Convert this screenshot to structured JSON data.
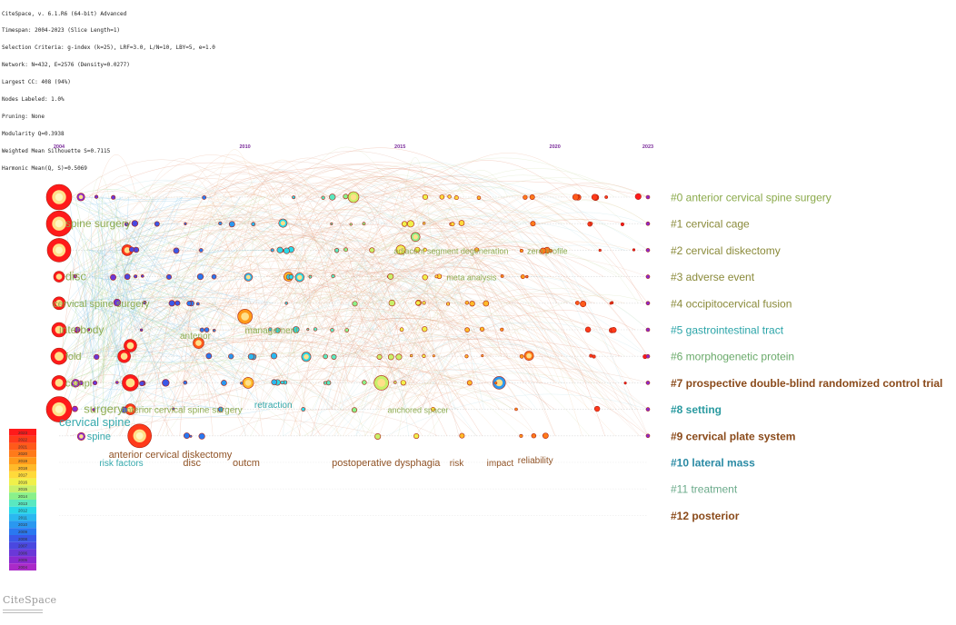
{
  "header_lines": [
    "CiteSpace, v. 6.1.R6 (64-bit) Advanced",
    "Timespan: 2004-2023 (Slice Length=1)",
    "Selection Criteria: g-index (k=25), LRF=3.0, L/N=10, LBY=5, e=1.0",
    "Network: N=432, E=2576 (Density=0.0277)",
    "Largest CC: 408 (94%)",
    "Nodes Labeled: 1.0%",
    "Pruning: None",
    "Modularity Q=0.3938",
    "Weighted Mean Silhouette S=0.7115",
    "Harmonic Mean(Q, S)=0.5069"
  ],
  "brand": "CiteSpace",
  "colors": {
    "cluster_green": "#8aa94a",
    "cluster_olive": "#8a8a3a",
    "cluster_teal": "#2aa4a8",
    "cluster_brown": "#8a4a1a",
    "cluster_sage": "#6aaa8a",
    "edge_red": "#e06a4a",
    "edge_orange": "#e8a060",
    "node_fill": "#ff4a1a",
    "node_core": "#fff07a"
  },
  "chart_data": {
    "type": "timeline",
    "title": "",
    "x_axis": {
      "ticks": [
        "2004",
        "2010",
        "2015",
        "2020",
        "2023"
      ],
      "range": [
        2004,
        2023
      ]
    },
    "clusters": [
      {
        "id": "#0",
        "label": "#0 anterior cervical spine surgery",
        "color": "#8aa94a"
      },
      {
        "id": "#1",
        "label": "#1 cervical cage",
        "color": "#8a8a3a"
      },
      {
        "id": "#2",
        "label": "#2 cervical diskectomy",
        "color": "#8a8a3a"
      },
      {
        "id": "#3",
        "label": "#3 adverse event",
        "color": "#8a8a3a"
      },
      {
        "id": "#4",
        "label": "#4 occipitocervical fusion",
        "color": "#8a8a3a"
      },
      {
        "id": "#5",
        "label": "#5 gastrointestinal tract",
        "color": "#2aa4a8"
      },
      {
        "id": "#6",
        "label": "#6 morphogenetic protein",
        "color": "#6aaa6a"
      },
      {
        "id": "#7",
        "label": "#7 prospective double-blind randomized control trial",
        "color": "#8a4a1a"
      },
      {
        "id": "#8",
        "label": "#8 setting",
        "color": "#2a9aa0"
      },
      {
        "id": "#9",
        "label": "#9 cervical plate system",
        "color": "#8a4a1a"
      },
      {
        "id": "#10",
        "label": "#10 lateral mass",
        "color": "#2a8aa4"
      },
      {
        "id": "#11",
        "label": "#11 treatment",
        "color": "#6aaa8a"
      },
      {
        "id": "#12",
        "label": "#12 posterior",
        "color": "#8a4a1a"
      }
    ],
    "keyword_labels": [
      {
        "text": "spine surgery",
        "lane": 1,
        "year": 2004.2,
        "color": "#8aa94a",
        "size": 12
      },
      {
        "text": "disc",
        "lane": 3,
        "year": 2004.2,
        "color": "#8aa94a",
        "size": 13
      },
      {
        "text": "cervical spine surgery",
        "lane": 4,
        "year": 2003.8,
        "color": "#8aa94a",
        "size": 11
      },
      {
        "text": "interbody",
        "lane": 5,
        "year": 2004.0,
        "color": "#8aa94a",
        "size": 12
      },
      {
        "text": "fold",
        "lane": 6,
        "year": 2004.2,
        "color": "#8aa94a",
        "size": 11
      },
      {
        "text": "compl",
        "lane": 7,
        "year": 2004.2,
        "color": "#8aa94a",
        "size": 11
      },
      {
        "text": "surgery",
        "lane": 8,
        "year": 2004.8,
        "color": "#8aa94a",
        "size": 13
      },
      {
        "text": "cervical spine",
        "lane": 8.5,
        "year": 2004.0,
        "color": "#2aa4a8",
        "size": 13
      },
      {
        "text": "spine",
        "lane": 9,
        "year": 2004.9,
        "color": "#2aa4a8",
        "size": 11
      },
      {
        "text": "anterior cervical spine surgery",
        "lane": 8,
        "year": 2006.0,
        "color": "#8aa94a",
        "size": 10
      },
      {
        "text": "anterior",
        "lane": 5.2,
        "year": 2007.9,
        "color": "#8aa94a",
        "size": 10
      },
      {
        "text": "management",
        "lane": 5,
        "year": 2010.0,
        "color": "#8aa94a",
        "size": 10
      },
      {
        "text": "retraction",
        "lane": 7.8,
        "year": 2010.3,
        "color": "#2aa4a8",
        "size": 10
      },
      {
        "text": "adjacent segment degeneration",
        "lane": 2,
        "year": 2014.8,
        "color": "#8aa94a",
        "size": 9
      },
      {
        "text": "zero profile",
        "lane": 2,
        "year": 2019.1,
        "color": "#8aa94a",
        "size": 9
      },
      {
        "text": "anchored spacer",
        "lane": 8,
        "year": 2014.6,
        "color": "#8aa94a",
        "size": 9
      },
      {
        "text": "meta analysis",
        "lane": 3,
        "year": 2016.5,
        "color": "#8aa94a",
        "size": 9
      },
      {
        "text": "anterior cervical diskectomy",
        "lane": 9.7,
        "year": 2005.6,
        "color": "#8a4a1a",
        "size": 11
      },
      {
        "text": "risk factors",
        "lane": 10,
        "year": 2005.3,
        "color": "#2aa4a8",
        "size": 10
      },
      {
        "text": "disc",
        "lane": 10,
        "year": 2008.0,
        "color": "#8a4a1a",
        "size": 11
      },
      {
        "text": "outcm",
        "lane": 10,
        "year": 2009.6,
        "color": "#8a4a1a",
        "size": 11
      },
      {
        "text": "postoperative dysphagia",
        "lane": 10,
        "year": 2012.8,
        "color": "#8a4a1a",
        "size": 11
      },
      {
        "text": "risk",
        "lane": 10,
        "year": 2016.6,
        "color": "#8a4a1a",
        "size": 10
      },
      {
        "text": "impact",
        "lane": 10,
        "year": 2017.8,
        "color": "#8a4a1a",
        "size": 10
      },
      {
        "text": "reliability",
        "lane": 9.9,
        "year": 2018.8,
        "color": "#8a4a1a",
        "size": 10
      }
    ],
    "legend": {
      "position": "bottom-left",
      "years": [
        "2023",
        "2022",
        "2021",
        "2020",
        "2019",
        "2018",
        "2017",
        "2016",
        "2015",
        "2014",
        "2013",
        "2012",
        "2011",
        "2010",
        "2009",
        "2008",
        "2007",
        "2006",
        "2005",
        "2004"
      ],
      "colors": [
        "#ff1a1a",
        "#ff3a1a",
        "#ff5a1a",
        "#ff7a1a",
        "#ff9a1a",
        "#ffba2a",
        "#ffda3a",
        "#f0f04a",
        "#c8f06a",
        "#8af08a",
        "#5ae8c0",
        "#2ad8e8",
        "#2ab8f0",
        "#2a98f0",
        "#2a78f0",
        "#3a58e8",
        "#4a48e0",
        "#6a38d8",
        "#8a2ad0",
        "#aa2ac8"
      ]
    }
  }
}
